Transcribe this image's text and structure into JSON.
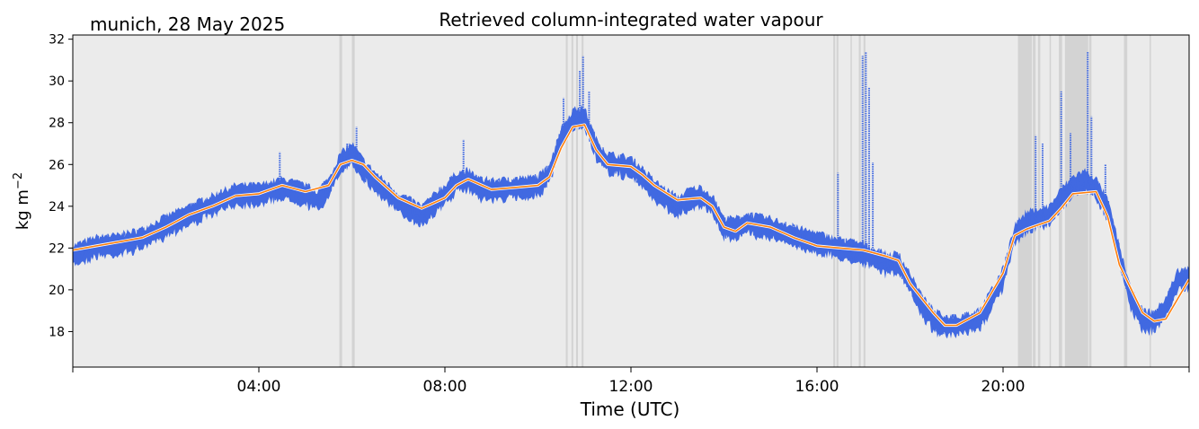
{
  "location_date": "munich, 28 May 2025",
  "chart_data": {
    "type": "scatter",
    "title": "Retrieved column-integrated water vapour",
    "xlabel": "Time (UTC)",
    "ylabel_main": "kg m",
    "ylabel_exp": "−2",
    "xlim_hours": [
      0,
      24
    ],
    "ylim": [
      16.3,
      32.2
    ],
    "x_ticks": [
      {
        "hour": 4,
        "label": "04:00"
      },
      {
        "hour": 8,
        "label": "08:00"
      },
      {
        "hour": 12,
        "label": "12:00"
      },
      {
        "hour": 16,
        "label": "16:00"
      },
      {
        "hour": 20,
        "label": "20:00"
      }
    ],
    "y_ticks": [
      18,
      20,
      22,
      24,
      26,
      28,
      30,
      32
    ],
    "grid": false,
    "background_color": "#ebebeb",
    "flag_band_color": "#d3d3d3",
    "flagged_intervals_hours": [
      [
        5.73,
        5.79
      ],
      [
        6.0,
        6.06
      ],
      [
        10.6,
        10.64
      ],
      [
        10.72,
        10.76
      ],
      [
        10.82,
        10.86
      ],
      [
        10.94,
        10.98
      ],
      [
        16.35,
        16.39
      ],
      [
        16.42,
        16.46
      ],
      [
        16.72,
        16.75
      ],
      [
        16.9,
        16.94
      ],
      [
        17.0,
        17.04
      ],
      [
        20.32,
        20.62
      ],
      [
        20.64,
        20.7
      ],
      [
        20.75,
        20.8
      ],
      [
        21.0,
        21.03
      ],
      [
        21.2,
        21.27
      ],
      [
        21.33,
        21.83
      ],
      [
        21.85,
        21.9
      ],
      [
        22.6,
        22.67
      ],
      [
        23.15,
        23.18
      ]
    ],
    "series": [
      {
        "kind": "raw",
        "color": "#4169e1",
        "x_hours": [
          0,
          0.5,
          1,
          1.5,
          2,
          2.5,
          3,
          3.5,
          4,
          4.5,
          5,
          5.25,
          5.5,
          5.75,
          6,
          6.25,
          6.5,
          7,
          7.25,
          7.5,
          7.75,
          8,
          8.25,
          8.5,
          8.75,
          9,
          9.5,
          10,
          10.25,
          10.5,
          10.75,
          11,
          11.25,
          11.5,
          12,
          12.25,
          12.5,
          12.75,
          13,
          13.25,
          13.5,
          13.75,
          14,
          14.25,
          14.5,
          14.75,
          15,
          15.5,
          16,
          16.5,
          17,
          17.25,
          17.5,
          17.75,
          18,
          18.25,
          18.5,
          18.75,
          19,
          19.5,
          20,
          20.25,
          20.5,
          21,
          21.25,
          21.5,
          21.75,
          22,
          22.25,
          22.5,
          22.75,
          23,
          23.25,
          23.5,
          23.75,
          24
        ],
        "values": [
          21.7,
          22.1,
          22.2,
          22.5,
          23.1,
          23.6,
          24.1,
          24.6,
          24.6,
          24.9,
          24.6,
          24.3,
          24.9,
          26.1,
          26.6,
          25.8,
          25.2,
          24.2,
          23.9,
          23.6,
          24.1,
          24.6,
          25.2,
          25.3,
          24.9,
          24.8,
          24.9,
          25.0,
          25.6,
          27.3,
          28.2,
          28.3,
          26.8,
          26.1,
          25.9,
          25.4,
          24.8,
          24.4,
          24.0,
          24.4,
          24.5,
          24.1,
          23.0,
          23.0,
          23.2,
          23.1,
          23.0,
          22.6,
          22.3,
          22.0,
          21.8,
          21.5,
          21.3,
          21.3,
          20.4,
          19.3,
          18.6,
          18.3,
          18.3,
          18.6,
          20.6,
          22.7,
          23.3,
          23.6,
          24.4,
          25.0,
          25.3,
          24.9,
          23.9,
          21.7,
          19.6,
          18.6,
          18.5,
          19.2,
          20.5,
          20.6
        ]
      },
      {
        "kind": "smoothed",
        "color": "#ff7f0e",
        "x_hours": [
          0,
          0.5,
          1,
          1.5,
          2,
          2.5,
          3,
          3.5,
          4,
          4.5,
          5,
          5.5,
          5.75,
          6,
          6.25,
          6.5,
          7,
          7.5,
          8,
          8.25,
          8.5,
          9,
          9.5,
          10,
          10.25,
          10.5,
          10.75,
          11,
          11.25,
          11.5,
          12,
          12.25,
          12.5,
          13,
          13.5,
          13.75,
          14,
          14.25,
          14.5,
          15,
          15.5,
          16,
          16.5,
          17,
          17.5,
          17.75,
          18,
          18.5,
          18.75,
          19,
          19.5,
          20,
          20.25,
          20.5,
          21,
          21.25,
          21.5,
          22,
          22.25,
          22.5,
          23,
          23.25,
          23.5,
          24
        ],
        "values": [
          21.9,
          22.1,
          22.3,
          22.5,
          23.0,
          23.6,
          24.0,
          24.5,
          24.6,
          25.0,
          24.7,
          25.0,
          26.0,
          26.2,
          26.0,
          25.4,
          24.4,
          23.9,
          24.4,
          25.0,
          25.3,
          24.8,
          24.9,
          25.0,
          25.4,
          26.8,
          27.8,
          27.9,
          26.7,
          26.0,
          25.9,
          25.5,
          25.0,
          24.3,
          24.4,
          24.0,
          23.0,
          22.8,
          23.2,
          23.0,
          22.5,
          22.1,
          22.0,
          21.9,
          21.6,
          21.4,
          20.3,
          18.9,
          18.3,
          18.3,
          18.9,
          20.8,
          22.6,
          22.9,
          23.3,
          23.9,
          24.6,
          24.7,
          23.5,
          21.2,
          18.9,
          18.5,
          18.6,
          20.5
        ]
      }
    ],
    "spikes": [
      {
        "x_hours": 4.45,
        "top": 26.6
      },
      {
        "x_hours": 5.9,
        "top": 27.0
      },
      {
        "x_hours": 6.1,
        "top": 27.8
      },
      {
        "x_hours": 8.4,
        "top": 27.2
      },
      {
        "x_hours": 10.55,
        "top": 29.2
      },
      {
        "x_hours": 10.9,
        "top": 30.5
      },
      {
        "x_hours": 10.97,
        "top": 31.2
      },
      {
        "x_hours": 11.1,
        "top": 29.5
      },
      {
        "x_hours": 16.45,
        "top": 25.6
      },
      {
        "x_hours": 16.98,
        "top": 31.2
      },
      {
        "x_hours": 17.05,
        "top": 31.4
      },
      {
        "x_hours": 17.12,
        "top": 29.7
      },
      {
        "x_hours": 17.2,
        "top": 26.1
      },
      {
        "x_hours": 20.7,
        "top": 27.4
      },
      {
        "x_hours": 20.85,
        "top": 27.0
      },
      {
        "x_hours": 21.25,
        "top": 29.5
      },
      {
        "x_hours": 21.45,
        "top": 27.5
      },
      {
        "x_hours": 21.82,
        "top": 31.4
      },
      {
        "x_hours": 21.9,
        "top": 28.3
      },
      {
        "x_hours": 22.2,
        "top": 26.0
      }
    ]
  }
}
